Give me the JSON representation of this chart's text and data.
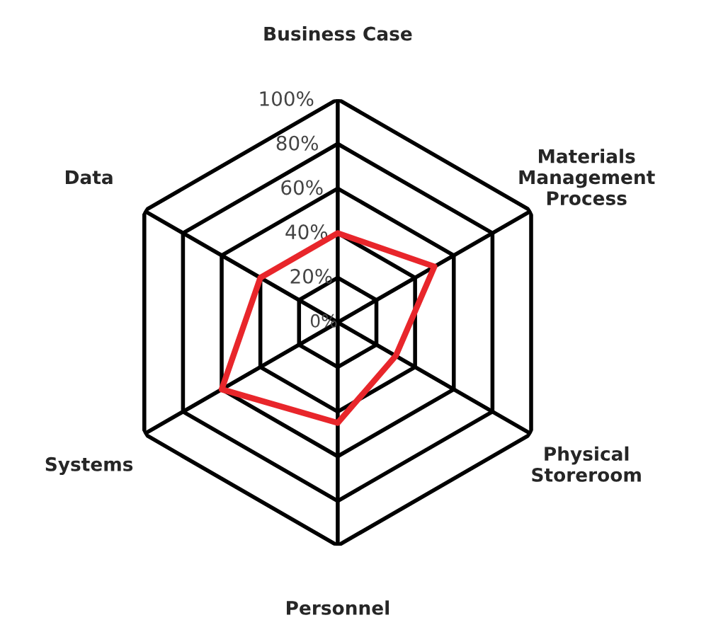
{
  "chart_data": {
    "type": "radar",
    "categories": [
      "Business Case",
      "Materials\nManagement\nProcess",
      "Physical\nStoreroom",
      "Personnel",
      "Systems",
      "Data"
    ],
    "series": [
      {
        "color": "#e8262b",
        "values": [
          40,
          50,
          30,
          45,
          60,
          40
        ]
      }
    ],
    "ylim": [
      0,
      100
    ],
    "yticks": [
      {
        "value": 0,
        "label": "0%"
      },
      {
        "value": 20,
        "label": "20%"
      },
      {
        "value": 40,
        "label": "40%"
      },
      {
        "value": 60,
        "label": "60%"
      },
      {
        "value": 80,
        "label": "80%"
      },
      {
        "value": 100,
        "label": "100%"
      }
    ],
    "grid": true
  }
}
